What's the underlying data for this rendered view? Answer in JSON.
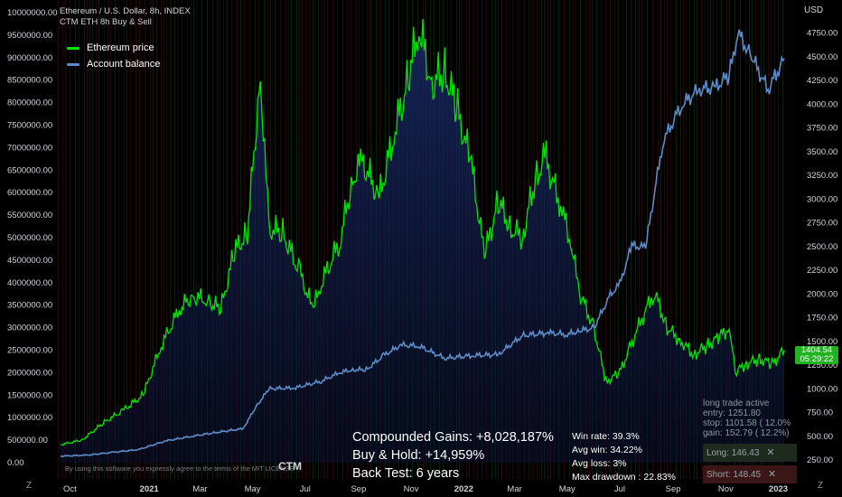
{
  "header": {
    "symbol_line": "Ethereum / U.S. Dollar, 8h, INDEX",
    "indicator_line": "CTM ETH 8h Buy & Sell",
    "currency": "USD"
  },
  "legend": [
    {
      "name": "Ethereum price",
      "color": "#00e600"
    },
    {
      "name": "Account balance",
      "color": "#5b8cc8"
    }
  ],
  "stats": {
    "compounded": "Compounded Gains:  +8,028,187%",
    "buyhold": "Buy & Hold:  +14,959%",
    "backtest": "Back Test:  6 years",
    "win_rate": "Win rate:  39.3%",
    "avg_win": "Avg win:  34.22%",
    "avg_loss": "Avg loss:  3%",
    "max_dd": "Max drawdown :  22.83%"
  },
  "trade": {
    "title": "long trade active",
    "entry": "entry:  1251.80",
    "stop": "stop:   1101.58 ( 12.0%",
    "gain": "gain:   152.79 ( 12.2%)",
    "long_label": "Long:  146.43",
    "short_label": "Short:  148.45"
  },
  "price_tag": {
    "price": "1404.54",
    "timer": "05:29:22"
  },
  "footer": {
    "disclaimer": "By using this software you expressly agree to the terms of the MIT LICENSE",
    "brand": "CTM",
    "z_left": "Z",
    "z_right": "Z"
  },
  "chart_data": {
    "type": "line",
    "x_ticks": [
      "Oct",
      "2021",
      "Mar",
      "May",
      "Jul",
      "Sep",
      "Nov",
      "2022",
      "Mar",
      "May",
      "Jul",
      "Sep",
      "Nov",
      "2023"
    ],
    "left_axis": {
      "ylim": [
        0,
        10000000
      ],
      "ticks": [
        "0.00",
        "500000.00",
        "1000000.00",
        "1500000.00",
        "2000000.00",
        "2500000.00",
        "3000000.00",
        "3500000.00",
        "4000000.00",
        "4500000.00",
        "5000000.00",
        "5500000.00",
        "6000000.00",
        "6500000.00",
        "7000000.00",
        "7500000.00",
        "8000000.00",
        "8500000.00",
        "9000000.00",
        "9500000.00",
        "10000000.00"
      ]
    },
    "right_axis": {
      "ylim": [
        250,
        4750
      ],
      "ticks": [
        "250.00",
        "500.00",
        "750.00",
        "1000.00",
        "1250.00",
        "1500.00",
        "1750.00",
        "2000.00",
        "2250.00",
        "2500.00",
        "2750.00",
        "3000.00",
        "3250.00",
        "3500.00",
        "3750.00",
        "4000.00",
        "4250.00",
        "4500.00",
        "4750.00"
      ]
    },
    "series": [
      {
        "name": "Ethereum price",
        "axis": "left",
        "color": "#00e600",
        "x": [
          "2020-09-20",
          "2020-10-15",
          "2020-11-10",
          "2020-12-01",
          "2020-12-25",
          "2021-01-15",
          "2021-02-05",
          "2021-02-20",
          "2021-03-10",
          "2021-03-25",
          "2021-04-10",
          "2021-04-25",
          "2021-05-10",
          "2021-05-20",
          "2021-06-05",
          "2021-06-25",
          "2021-07-10",
          "2021-07-20",
          "2021-08-10",
          "2021-08-25",
          "2021-09-05",
          "2021-09-25",
          "2021-10-15",
          "2021-10-30",
          "2021-11-10",
          "2021-11-25",
          "2021-12-10",
          "2021-12-25",
          "2022-01-10",
          "2022-01-25",
          "2022-02-10",
          "2022-02-25",
          "2022-03-10",
          "2022-03-25",
          "2022-04-05",
          "2022-04-25",
          "2022-05-05",
          "2022-05-15",
          "2022-06-01",
          "2022-06-15",
          "2022-07-01",
          "2022-07-20",
          "2022-08-10",
          "2022-08-25",
          "2022-09-10",
          "2022-09-25",
          "2022-10-10",
          "2022-10-25",
          "2022-11-05",
          "2022-11-12",
          "2022-11-25",
          "2022-12-10",
          "2022-12-25",
          "2023-01-08"
        ],
        "y": [
          400000,
          500000,
          900000,
          1150000,
          1500000,
          2600000,
          3400000,
          3700000,
          3600000,
          3400000,
          4700000,
          5100000,
          8600000,
          5200000,
          5100000,
          4200000,
          3400000,
          4000000,
          4900000,
          6300000,
          6700000,
          5900000,
          7500000,
          8600000,
          9700000,
          8400000,
          8700000,
          7800000,
          6600000,
          4600000,
          5800000,
          5200000,
          5000000,
          6300000,
          6800000,
          5600000,
          4900000,
          3800000,
          3000000,
          1800000,
          2000000,
          2900000,
          3800000,
          3000000,
          2700000,
          2400000,
          2600000,
          2800000,
          3000000,
          2000000,
          2200000,
          2300000,
          2200000,
          2500000
        ]
      },
      {
        "name": "Account balance",
        "axis": "right",
        "color": "#5b8cc8",
        "x": [
          "2020-09-20",
          "2020-10-20",
          "2020-11-20",
          "2020-12-20",
          "2021-01-20",
          "2021-02-20",
          "2021-03-20",
          "2021-04-20",
          "2021-05-05",
          "2021-05-20",
          "2021-06-20",
          "2021-07-20",
          "2021-08-10",
          "2021-08-25",
          "2021-09-10",
          "2021-09-30",
          "2021-10-20",
          "2021-11-10",
          "2021-12-10",
          "2022-01-10",
          "2022-02-10",
          "2022-03-10",
          "2022-04-10",
          "2022-05-01",
          "2022-05-15",
          "2022-06-01",
          "2022-06-20",
          "2022-07-01",
          "2022-07-15",
          "2022-07-31",
          "2022-08-20",
          "2022-09-10",
          "2022-09-30",
          "2022-10-20",
          "2022-11-05",
          "2022-11-15",
          "2022-12-01",
          "2022-12-20",
          "2023-01-08"
        ],
        "y": [
          290,
          300,
          330,
          360,
          450,
          500,
          540,
          580,
          810,
          1000,
          1010,
          1080,
          1170,
          1200,
          1200,
          1350,
          1460,
          1450,
          1320,
          1350,
          1360,
          1560,
          1590,
          1570,
          1610,
          1640,
          1990,
          2100,
          2510,
          2490,
          3600,
          3980,
          4150,
          4180,
          4300,
          4750,
          4500,
          4150,
          4480
        ]
      }
    ]
  }
}
